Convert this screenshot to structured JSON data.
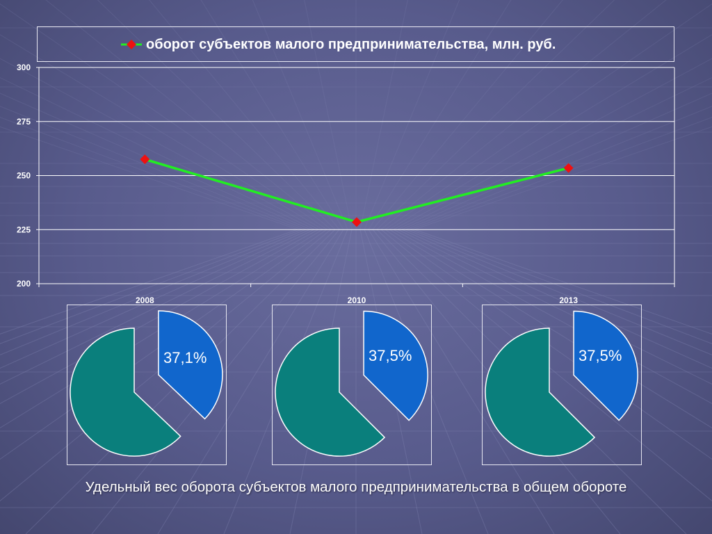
{
  "chart_data": [
    {
      "type": "line",
      "series": [
        {
          "name": "оборот субъектов малого предпринимательства, млн. руб.",
          "values": [
            257.5,
            228.5,
            253.5
          ],
          "color": "#22ee22",
          "marker_color": "#ee1111"
        }
      ],
      "categories": [
        "2008",
        "2010",
        "2013"
      ],
      "ylim": [
        200,
        300
      ],
      "yticks": [
        "200",
        "225",
        "250",
        "275",
        "300"
      ],
      "grid": true,
      "legend": "top"
    },
    {
      "type": "pie",
      "category": "2008",
      "slices": [
        {
          "label": "37,1%",
          "value": 37.1,
          "color": "#1166cc"
        },
        {
          "label": "",
          "value": 62.9,
          "color": "#0a7f7c"
        }
      ]
    },
    {
      "type": "pie",
      "category": "2010",
      "slices": [
        {
          "label": "37,5%",
          "value": 37.5,
          "color": "#1166cc"
        },
        {
          "label": "",
          "value": 62.5,
          "color": "#0a7f7c"
        }
      ]
    },
    {
      "type": "pie",
      "category": "2013",
      "slices": [
        {
          "label": "37,5%",
          "value": 37.5,
          "color": "#1166cc"
        },
        {
          "label": "",
          "value": 62.5,
          "color": "#0a7f7c"
        }
      ]
    }
  ],
  "caption": "Удельный вес оборота субъектов малого предпринимательства в общем обороте"
}
